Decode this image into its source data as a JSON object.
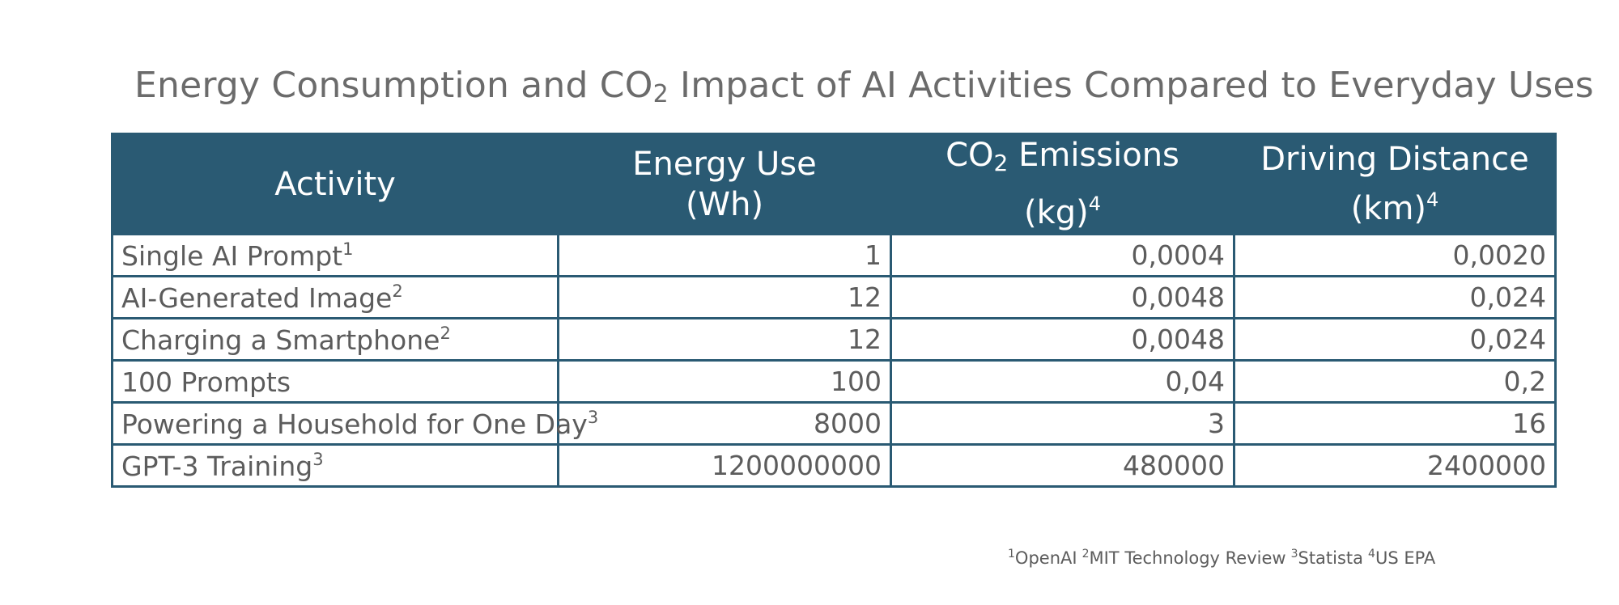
{
  "title": {
    "before": "Energy Consumption and CO",
    "sub": "2",
    "after": " Impact of AI Activities Compared to Everyday Uses"
  },
  "chart_data": {
    "type": "table",
    "columns": [
      {
        "line1": "Activity",
        "line2": "",
        "sub": "",
        "sup": ""
      },
      {
        "line1": "Energy Use",
        "line2": "(Wh)",
        "sub": "",
        "sup": ""
      },
      {
        "line1": "CO",
        "sub": "2",
        "line1_rest": " Emissions",
        "line2": "(kg)",
        "sup": "4"
      },
      {
        "line1": "Driving Distance",
        "line2": "(km)",
        "sub": "",
        "sup": "4"
      }
    ],
    "rows": [
      {
        "activity": "Single AI Prompt",
        "sup": "1",
        "energy_wh": "1",
        "co2_kg": "0,0004",
        "driving_km": "0,0020"
      },
      {
        "activity": "AI-Generated Image",
        "sup": "2",
        "energy_wh": "12",
        "co2_kg": "0,0048",
        "driving_km": "0,024"
      },
      {
        "activity": "Charging a Smartphone",
        "sup": "2",
        "energy_wh": "12",
        "co2_kg": "0,0048",
        "driving_km": "0,024"
      },
      {
        "activity": "100 Prompts",
        "sup": "",
        "energy_wh": "100",
        "co2_kg": "0,04",
        "driving_km": "0,2"
      },
      {
        "activity": "Powering a Household for One Day",
        "sup": "3",
        "energy_wh": "8000",
        "co2_kg": "3",
        "driving_km": "16"
      },
      {
        "activity": "GPT-3 Training",
        "sup": "3",
        "energy_wh": "1200000000",
        "co2_kg": "480000",
        "driving_km": "2400000"
      }
    ]
  },
  "sources": [
    {
      "num": "1",
      "name": "OpenAI"
    },
    {
      "num": "2",
      "name": "MIT Technology Review"
    },
    {
      "num": "3",
      "name": "Statista"
    },
    {
      "num": "4",
      "name": "US EPA"
    }
  ],
  "colors": {
    "header_bg": "#2a5a73",
    "border": "#2a5a73",
    "text": "#5c5c5c",
    "title": "#6b6b6b"
  }
}
